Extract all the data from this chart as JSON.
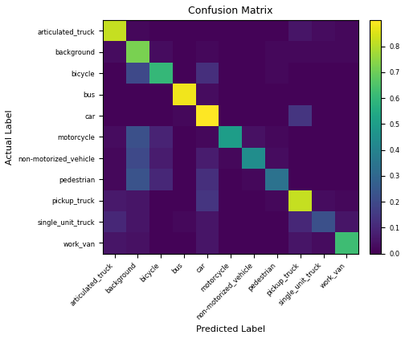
{
  "title": "Confusion Matrix",
  "xlabel": "Predicted Label",
  "ylabel": "Actual Label",
  "classes": [
    "articulated_truck",
    "background",
    "bicycle",
    "bus",
    "car",
    "motorcycle",
    "non-motorized_vehicle",
    "pedestrian",
    "pickup_truck",
    "single_unit_truck",
    "work_van"
  ],
  "matrix": [
    [
      0.82,
      0.02,
      0.01,
      0.01,
      0.01,
      0.01,
      0.01,
      0.01,
      0.05,
      0.03,
      0.02
    ],
    [
      0.03,
      0.72,
      0.03,
      0.01,
      0.02,
      0.01,
      0.01,
      0.02,
      0.02,
      0.02,
      0.02
    ],
    [
      0.01,
      0.2,
      0.6,
      0.01,
      0.12,
      0.01,
      0.01,
      0.02,
      0.01,
      0.01,
      0.01
    ],
    [
      0.01,
      0.01,
      0.01,
      0.88,
      0.03,
      0.01,
      0.01,
      0.01,
      0.01,
      0.01,
      0.01
    ],
    [
      0.01,
      0.01,
      0.01,
      0.02,
      0.9,
      0.01,
      0.01,
      0.01,
      0.14,
      0.01,
      0.01
    ],
    [
      0.03,
      0.22,
      0.09,
      0.01,
      0.02,
      0.5,
      0.04,
      0.02,
      0.01,
      0.01,
      0.01
    ],
    [
      0.02,
      0.2,
      0.07,
      0.01,
      0.07,
      0.02,
      0.44,
      0.03,
      0.01,
      0.01,
      0.01
    ],
    [
      0.02,
      0.23,
      0.1,
      0.01,
      0.12,
      0.01,
      0.02,
      0.34,
      0.01,
      0.01,
      0.01
    ],
    [
      0.06,
      0.05,
      0.01,
      0.01,
      0.14,
      0.01,
      0.01,
      0.02,
      0.82,
      0.03,
      0.02
    ],
    [
      0.1,
      0.05,
      0.01,
      0.02,
      0.05,
      0.01,
      0.01,
      0.01,
      0.1,
      0.22,
      0.05
    ],
    [
      0.05,
      0.04,
      0.01,
      0.01,
      0.05,
      0.01,
      0.01,
      0.01,
      0.05,
      0.03,
      0.62
    ]
  ],
  "colormap": "viridis",
  "vmin": 0.0,
  "vmax": 0.9,
  "figsize": [
    5.04,
    4.22
  ],
  "dpi": 100,
  "title_fontsize": 9,
  "label_fontsize": 8,
  "tick_fontsize": 6,
  "cbar_tick_fontsize": 6,
  "cbar_ticks": [
    0.0,
    0.1,
    0.2,
    0.3,
    0.4,
    0.5,
    0.6,
    0.7,
    0.8
  ]
}
